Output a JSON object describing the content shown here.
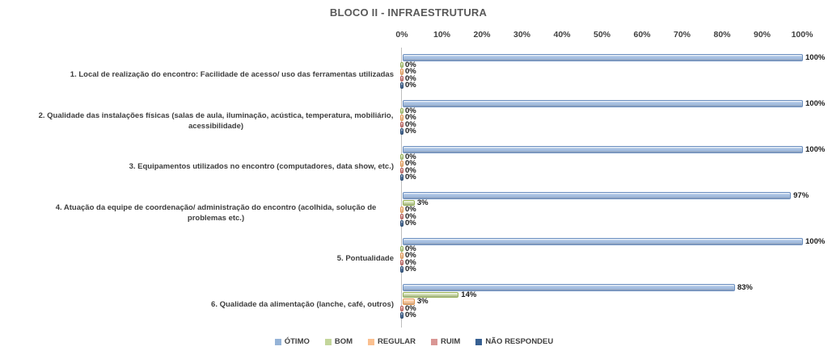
{
  "chart_data": {
    "type": "bar",
    "orientation": "horizontal",
    "title": "BLOCO II - INFRAESTRUTURA",
    "xlabel": "",
    "ylabel": "",
    "xlim": [
      0,
      100
    ],
    "x_ticks": [
      "0%",
      "10%",
      "20%",
      "30%",
      "40%",
      "50%",
      "60%",
      "70%",
      "80%",
      "90%",
      "100%"
    ],
    "grid": false,
    "data_labels": true,
    "legend_position": "bottom",
    "categories": [
      "1. Local de realização do encontro: Facilidade de acesso/ uso das ferramentas utilizadas",
      "2. Qualidade das instalações físicas (salas de aula, iluminação, acústica, temperatura, mobiliário, acessibilidade)",
      "3. Equipamentos utilizados no encontro (computadores, data show, etc.)",
      "4. Atuação da equipe de coordenação/ administração do encontro (acolhida, solução de problemas etc.)",
      "5. Pontualidade",
      "6. Qualidade da alimentação (lanche, café, outros)"
    ],
    "series": [
      {
        "name": "ÓTIMO",
        "color": "#95B3D7",
        "fill": "#A7C0E2",
        "border": "#6A8EBF",
        "values": [
          100,
          100,
          100,
          97,
          100,
          83
        ]
      },
      {
        "name": "BOM",
        "color": "#C3D69B",
        "fill": "#CCDCA8",
        "border": "#94B054",
        "values": [
          0,
          0,
          0,
          3,
          0,
          14
        ]
      },
      {
        "name": "REGULAR",
        "color": "#FAC090",
        "fill": "#FBC99E",
        "border": "#E0954F",
        "values": [
          0,
          0,
          0,
          0,
          0,
          3
        ]
      },
      {
        "name": "RUIM",
        "color": "#D99694",
        "fill": "#D99694",
        "border": "#B55A57",
        "values": [
          0,
          0,
          0,
          0,
          0,
          0
        ]
      },
      {
        "name": "NÃO RESPONDEU",
        "color": "#376092",
        "fill": "#3E6597",
        "border": "#2B4A70",
        "values": [
          0,
          0,
          0,
          0,
          0,
          0
        ]
      }
    ],
    "value_suffix": "%"
  }
}
